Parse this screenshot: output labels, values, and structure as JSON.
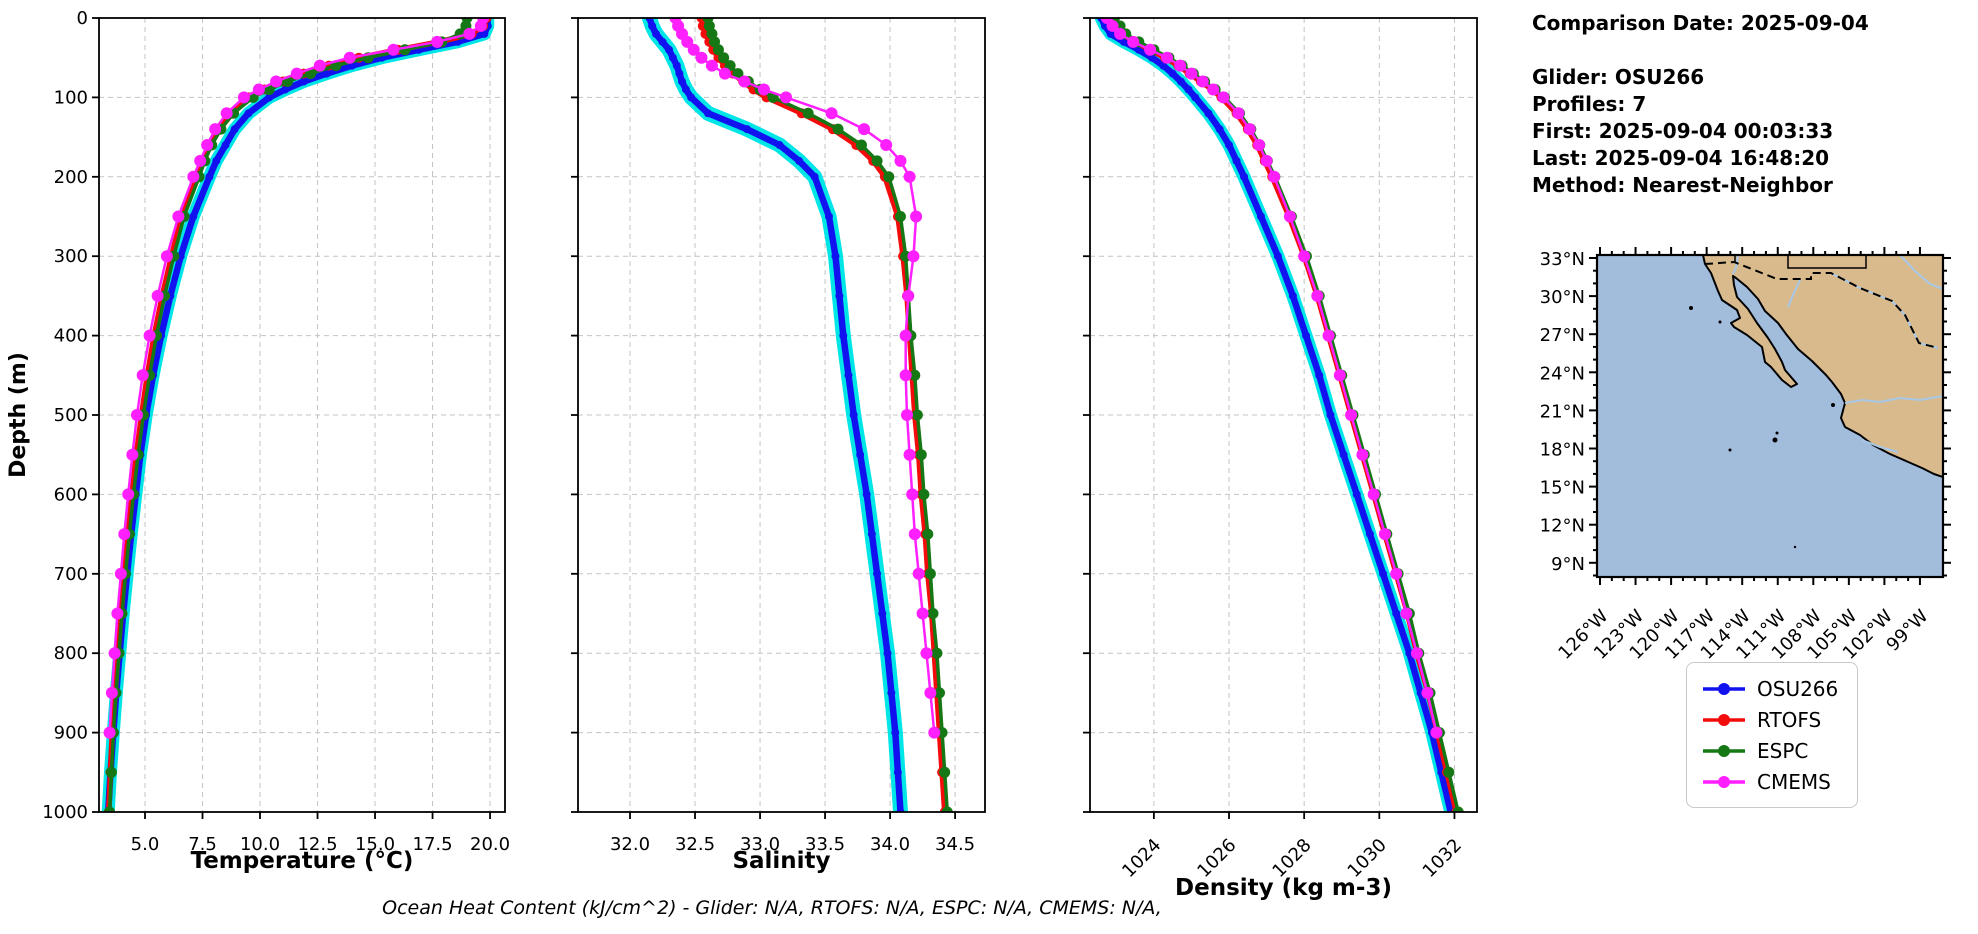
{
  "info": {
    "lines": [
      "Comparison Date: 2025-09-04",
      "",
      "Glider: OSU266",
      "Profiles: 7",
      "First: 2025-09-04 00:03:33",
      "Last: 2025-09-04 16:48:20",
      "Method: Nearest-Neighbor"
    ]
  },
  "caption": {
    "text": "Ocean Heat Content (kJ/cm^2) - Glider: N/A,  RTOFS: N/A,  ESPC: N/A,  CMEMS: N/A,"
  },
  "legend": {
    "items": [
      {
        "label": "OSU266",
        "color": "#1212f0"
      },
      {
        "label": "RTOFS",
        "color": "#f20c0c"
      },
      {
        "label": "ESPC",
        "color": "#157815"
      },
      {
        "label": "CMEMS",
        "color": "#ff1fff"
      }
    ]
  },
  "map": {
    "lat_labels": [
      "33°N",
      "30°N",
      "27°N",
      "24°N",
      "21°N",
      "18°N",
      "15°N",
      "12°N",
      "9°N"
    ],
    "lon_labels": [
      "126°W",
      "123°W",
      "120°W",
      "117°W",
      "114°W",
      "111°W",
      "108°W",
      "105°W",
      "102°W",
      "99°W"
    ],
    "ocean_color": "#a2bcdc",
    "land_color": "#d8ba8d",
    "river_color": "#a8c8e8"
  },
  "chart_data": {
    "type": "line",
    "ylabel": "Depth (m)",
    "ylim": [
      0,
      1000
    ],
    "yticks": [
      0,
      100,
      200,
      300,
      400,
      500,
      600,
      700,
      800,
      900,
      1000
    ],
    "ytick_labels": [
      "0",
      "100",
      "200",
      "300",
      "400",
      "500",
      "600",
      "700",
      "800",
      "900",
      "1000"
    ],
    "grid": true,
    "legend_position": "lower right of figure",
    "glider_envelope_color": "#00e5e5",
    "depths": [
      0,
      10,
      20,
      30,
      40,
      50,
      60,
      70,
      80,
      90,
      100,
      120,
      140,
      160,
      180,
      200,
      250,
      300,
      350,
      400,
      450,
      500,
      550,
      600,
      650,
      700,
      750,
      800,
      850,
      900,
      950,
      1000
    ],
    "panels": [
      {
        "name": "temperature",
        "xlabel": "Temperature (°C)",
        "xlim": [
          3.0,
          20.65
        ],
        "xtick_values": [
          5.0,
          7.5,
          10.0,
          12.5,
          15.0,
          17.5,
          20.0
        ],
        "xtick_labels": [
          "5.0",
          "7.5",
          "10.0",
          "12.5",
          "15.0",
          "17.5",
          "20.0"
        ],
        "xtick_rotation": 0,
        "series": [
          {
            "name": "OSU266",
            "values": [
              19.9,
              19.9,
              19.75,
              18.6,
              16.9,
              15.3,
              14.0,
              12.9,
              11.9,
              11.1,
              10.4,
              9.5,
              8.9,
              8.5,
              8.1,
              7.8,
              7.1,
              6.55,
              6.1,
              5.7,
              5.35,
              5.05,
              4.8,
              4.6,
              4.4,
              4.22,
              4.05,
              3.9,
              3.75,
              3.62,
              3.5,
              3.4
            ]
          },
          {
            "name": "RTOFS",
            "values": [
              19.85,
              19.7,
              19.2,
              17.8,
              16.0,
              14.3,
              13.0,
              11.9,
              11.0,
              10.2,
              9.5,
              8.7,
              8.15,
              7.8,
              7.5,
              7.25,
              6.6,
              6.15,
              5.75,
              5.4,
              5.1,
              4.85,
              4.62,
              4.44,
              4.27,
              4.11,
              3.96,
              3.82,
              3.7,
              3.58,
              3.5,
              3.42
            ]
          },
          {
            "name": "ESPC",
            "values": [
              19.0,
              18.95,
              18.7,
              17.9,
              16.3,
              14.7,
              13.3,
              12.2,
              11.2,
              10.4,
              9.7,
              8.85,
              8.3,
              7.9,
              7.6,
              7.35,
              6.7,
              6.25,
              5.85,
              5.5,
              5.2,
              4.93,
              4.7,
              4.5,
              4.32,
              4.15,
              4.0,
              3.87,
              3.74,
              3.63,
              3.54,
              3.46
            ]
          },
          {
            "name": "CMEMS",
            "values": [
              19.7,
              19.6,
              19.1,
              17.7,
              15.8,
              13.9,
              12.6,
              11.6,
              10.7,
              9.95,
              9.3,
              8.55,
              8.05,
              7.7,
              7.4,
              7.1,
              6.45,
              5.95,
              5.55,
              5.2,
              4.9,
              4.65,
              4.45,
              4.27,
              4.1,
              3.95,
              3.8,
              3.68,
              3.56,
              3.46,
              null,
              null
            ]
          }
        ]
      },
      {
        "name": "salinity",
        "xlabel": "Salinity",
        "xlim": [
          31.6,
          34.73
        ],
        "xtick_values": [
          32.0,
          32.5,
          33.0,
          33.5,
          34.0,
          34.5
        ],
        "xtick_labels": [
          "32.0",
          "32.5",
          "33.0",
          "33.5",
          "34.0",
          "34.5"
        ],
        "xtick_rotation": 0,
        "series": [
          {
            "name": "OSU266",
            "values": [
              32.15,
              32.17,
              32.2,
              32.25,
              32.3,
              32.33,
              32.36,
              32.38,
              32.4,
              32.43,
              32.47,
              32.6,
              32.9,
              33.15,
              33.3,
              33.42,
              33.53,
              33.58,
              33.61,
              33.64,
              33.68,
              33.72,
              33.77,
              33.82,
              33.86,
              33.9,
              33.94,
              33.98,
              34.01,
              34.04,
              34.06,
              34.08
            ]
          },
          {
            "name": "RTOFS",
            "values": [
              32.55,
              32.56,
              32.58,
              32.61,
              32.64,
              32.68,
              32.73,
              32.79,
              32.87,
              32.95,
              33.05,
              33.32,
              33.56,
              33.74,
              33.87,
              33.96,
              34.06,
              34.1,
              34.13,
              34.15,
              34.17,
              34.19,
              34.22,
              34.24,
              34.27,
              34.29,
              34.32,
              34.34,
              34.36,
              34.38,
              34.4,
              34.42
            ]
          },
          {
            "name": "ESPC",
            "values": [
              32.6,
              32.61,
              32.63,
              32.65,
              32.68,
              32.72,
              32.77,
              32.83,
              32.91,
              33.0,
              33.1,
              33.37,
              33.6,
              33.78,
              33.9,
              33.99,
              34.08,
              34.12,
              34.14,
              34.16,
              34.19,
              34.21,
              34.24,
              34.26,
              34.29,
              34.31,
              34.33,
              34.36,
              34.38,
              34.4,
              34.42,
              34.44
            ]
          },
          {
            "name": "CMEMS",
            "values": [
              32.35,
              32.37,
              32.4,
              32.44,
              32.49,
              32.55,
              32.63,
              32.73,
              32.88,
              33.03,
              33.2,
              33.55,
              33.8,
              33.97,
              34.08,
              34.15,
              34.2,
              34.18,
              34.14,
              34.12,
              34.12,
              34.13,
              34.15,
              34.17,
              34.19,
              34.22,
              34.25,
              34.28,
              34.31,
              34.34,
              null,
              null
            ]
          }
        ]
      },
      {
        "name": "density",
        "xlabel": "Density (kg m-3)",
        "xlim": [
          1022.3,
          1032.6
        ],
        "xtick_values": [
          1024,
          1026,
          1028,
          1030,
          1032
        ],
        "xtick_labels": [
          "1024",
          "1026",
          "1028",
          "1030",
          "1032"
        ],
        "xtick_rotation": -45,
        "series": [
          {
            "name": "OSU266",
            "values": [
              1022.6,
              1022.7,
              1022.85,
              1023.2,
              1023.6,
              1023.95,
              1024.25,
              1024.5,
              1024.72,
              1024.92,
              1025.1,
              1025.45,
              1025.75,
              1026.0,
              1026.2,
              1026.4,
              1026.85,
              1027.3,
              1027.7,
              1028.05,
              1028.4,
              1028.7,
              1029.05,
              1029.4,
              1029.75,
              1030.1,
              1030.45,
              1030.8,
              1031.1,
              1031.4,
              1031.65,
              1031.9
            ]
          },
          {
            "name": "RTOFS",
            "values": [
              1022.85,
              1023.0,
              1023.15,
              1023.5,
              1023.9,
              1024.3,
              1024.65,
              1024.95,
              1025.25,
              1025.55,
              1025.8,
              1026.2,
              1026.5,
              1026.75,
              1026.95,
              1027.15,
              1027.6,
              1028.0,
              1028.35,
              1028.65,
              1028.95,
              1029.25,
              1029.55,
              1029.85,
              1030.15,
              1030.45,
              1030.75,
              1031.0,
              1031.3,
              1031.55,
              1031.8,
              1032.05
            ]
          },
          {
            "name": "ESPC",
            "values": [
              1022.95,
              1023.1,
              1023.25,
              1023.6,
              1024.0,
              1024.4,
              1024.75,
              1025.05,
              1025.35,
              1025.63,
              1025.88,
              1026.28,
              1026.58,
              1026.82,
              1027.02,
              1027.22,
              1027.66,
              1028.06,
              1028.4,
              1028.7,
              1029.0,
              1029.3,
              1029.6,
              1029.9,
              1030.2,
              1030.5,
              1030.8,
              1031.05,
              1031.35,
              1031.6,
              1031.85,
              1032.1
            ]
          },
          {
            "name": "CMEMS",
            "values": [
              1022.75,
              1022.9,
              1023.1,
              1023.45,
              1023.9,
              1024.35,
              1024.7,
              1025.0,
              1025.3,
              1025.58,
              1025.85,
              1026.25,
              1026.55,
              1026.8,
              1027.0,
              1027.2,
              1027.62,
              1028.0,
              1028.35,
              1028.65,
              1028.95,
              1029.25,
              1029.55,
              1029.85,
              1030.15,
              1030.45,
              1030.72,
              1031.0,
              1031.28,
              1031.52,
              null,
              null
            ]
          }
        ]
      }
    ]
  }
}
